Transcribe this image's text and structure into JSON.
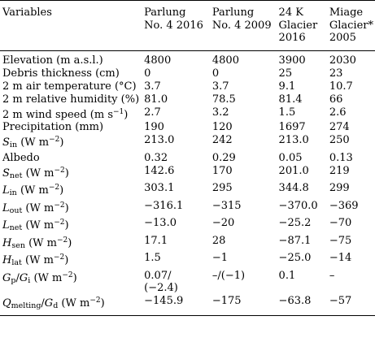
{
  "header": {
    "variables": "Variables",
    "col1_line1": "Parlung",
    "col1_line2": "No. 4 2016",
    "col2_line1": "Parlung",
    "col2_line2": "No. 4 2009",
    "col3_line1": "24 K",
    "col3_line2": "Glacier",
    "col3_line3": "2016",
    "col4_line1": "Miage",
    "col4_line2": "Glacier*",
    "col4_line3": "2005"
  },
  "rows": [
    {
      "label": "Elevation (m a.s.l.)",
      "v": [
        "4800",
        "4800",
        "3900",
        "2030"
      ]
    },
    {
      "label": "Debris thickness (cm)",
      "v": [
        "0",
        "0",
        "25",
        "23"
      ]
    },
    {
      "label": "2 m air temperature (°C)",
      "v": [
        "3.7",
        "3.7",
        "9.1",
        "10.7"
      ]
    },
    {
      "label": "2 m relative humidity (%)",
      "v": [
        "81.0",
        "78.5",
        "81.4",
        "66"
      ]
    },
    {
      "label_pre": "2 m wind speed (m s",
      "label_sup": "−1",
      "label_post": ")",
      "v": [
        "2.7",
        "3.2",
        "1.5",
        "2.6"
      ]
    },
    {
      "label": "Precipitation (mm)",
      "v": [
        "190",
        "120",
        "1697",
        "274"
      ]
    },
    {
      "sym": "S",
      "sub": "in",
      "unit_pre": " (W m",
      "unit_sup": "−2",
      "unit_post": ")",
      "v": [
        "213.0",
        "242",
        "213.0",
        "250"
      ]
    },
    {
      "label": "Albedo",
      "v": [
        "0.32",
        "0.29",
        "0.05",
        "0.13"
      ]
    },
    {
      "sym": "S",
      "sub": "net",
      "unit_pre": " (W m",
      "unit_sup": "−2",
      "unit_post": ")",
      "v": [
        "142.6",
        "170",
        "201.0",
        "219"
      ]
    },
    {
      "sym": "L",
      "sub": "in",
      "unit_pre": " (W m",
      "unit_sup": "−2",
      "unit_post": ")",
      "v": [
        "303.1",
        "295",
        "344.8",
        "299"
      ]
    },
    {
      "sym": "L",
      "sub": "out",
      "unit_pre": " (W m",
      "unit_sup": "−2",
      "unit_post": ")",
      "v": [
        "−316.1",
        "−315",
        "−370.0",
        "−369"
      ]
    },
    {
      "sym": "L",
      "sub": "net",
      "unit_pre": " (W m",
      "unit_sup": "−2",
      "unit_post": ")",
      "v": [
        "−13.0",
        "−20",
        "−25.2",
        "−70"
      ]
    },
    {
      "sym": "H",
      "sub": "sen",
      "unit_pre": " (W m",
      "unit_sup": "−2",
      "unit_post": ")",
      "v": [
        "17.1",
        "28",
        "−87.1",
        "−75"
      ]
    },
    {
      "sym": "H",
      "sub": "lat",
      "unit_pre": " (W m",
      "unit_sup": "−2",
      "unit_post": ")",
      "v": [
        "1.5",
        "−1",
        "−25.0",
        "−14"
      ]
    }
  ],
  "gp_row": {
    "sym1": "G",
    "sub1": "p",
    "slash": "/",
    "sym2": "G",
    "sub2": "i",
    "unit_pre": " (W m",
    "unit_sup": "−2",
    "unit_post": ")",
    "v1_line1": "0.07/",
    "v1_line2": "(−2.4)",
    "v2": "–/(−1)",
    "v3": "0.1",
    "v4": "–"
  },
  "q_row": {
    "sym1": "Q",
    "sub1": "melting",
    "slash": "/",
    "sym2": "G",
    "sub2": "d",
    "unit_pre": " (W m",
    "unit_sup": "−2",
    "unit_post": ")",
    "v": [
      "−145.9",
      "−175",
      "−63.8",
      "−57"
    ]
  }
}
